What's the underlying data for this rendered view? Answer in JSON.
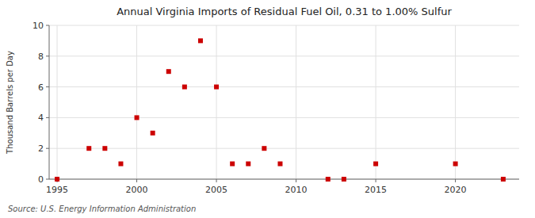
{
  "chart_data": {
    "type": "scatter",
    "title": "Annual Virginia Imports of Residual Fuel Oil, 0.31 to 1.00% Sulfur",
    "ylabel": "Thousand Barrels per Day",
    "source": "Source: U.S. Energy Information Administration",
    "x": [
      1995,
      1997,
      1998,
      1999,
      2000,
      2001,
      2002,
      2003,
      2004,
      2005,
      2006,
      2007,
      2008,
      2009,
      2012,
      2013,
      2015,
      2020,
      2023
    ],
    "values": [
      0.0,
      2.0,
      2.0,
      1.0,
      4.0,
      3.0,
      7.0,
      6.0,
      9.0,
      6.0,
      1.0,
      1.0,
      2.0,
      1.0,
      0.0,
      0.0,
      1.0,
      1.0,
      0.0
    ],
    "color": "#cc0000",
    "marker": "square",
    "xlim": [
      1994.5,
      2024
    ],
    "ylim": [
      0,
      10
    ],
    "xticks": [
      1995,
      2000,
      2005,
      2010,
      2015,
      2020
    ],
    "yticks": [
      0,
      2,
      4,
      6,
      8,
      10
    ],
    "grid": true
  }
}
